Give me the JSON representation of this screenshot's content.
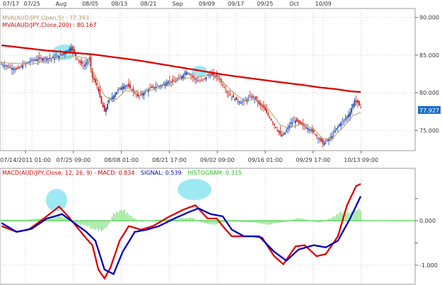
{
  "chart_data": {
    "type": "line",
    "price_panel": {
      "ylim": [
        72.5,
        91
      ],
      "y_ticks": [
        "90.000",
        "85.000",
        "80.000",
        "75.000"
      ],
      "y_tick_values": [
        90,
        85,
        80,
        75
      ],
      "top_dates": [
        "07/17",
        "07/25",
        "Aug",
        "08/05",
        "08/13",
        "08/21",
        "Sep",
        "09/09",
        "09/17",
        "09/25",
        "Oct",
        "10/09"
      ],
      "bottom_dates": [
        "07/14/2011 01:00",
        "07/25 09:00",
        "08/08 01:00",
        "08/21 17:00",
        "09/02 09:00",
        "09/16 01:00",
        "09/29 17:00",
        "10/13 09:00"
      ],
      "legend_mva5": "MVA(AUD/JPY,Open,5) : 77.393",
      "legend_mva200": "MVA(AUD/JPY,Close,200) : 80.167",
      "last_price": "77.927",
      "colors": {
        "up": "#1b3fa6",
        "down": "#c81e1e",
        "mva200": "#dd0000",
        "mva5": "#b5a16a",
        "highlight": "#7ee0f0",
        "price_box": "#1a6fc8"
      },
      "close_path": [
        [
          0,
          83.8
        ],
        [
          5,
          83.4
        ],
        [
          10,
          83.1
        ],
        [
          15,
          83.8
        ],
        [
          20,
          84.3
        ],
        [
          25,
          84.5
        ],
        [
          30,
          84.6
        ],
        [
          35,
          84.6
        ],
        [
          38,
          84.9
        ],
        [
          42,
          85.4
        ],
        [
          46,
          86.0
        ],
        [
          50,
          84.5
        ],
        [
          54,
          83.5
        ],
        [
          58,
          84.5
        ],
        [
          60,
          82.0
        ],
        [
          63,
          81.0
        ],
        [
          66,
          78.6
        ],
        [
          68,
          77.5
        ],
        [
          71,
          79.0
        ],
        [
          74,
          79.6
        ],
        [
          77,
          80.4
        ],
        [
          80,
          80.8
        ],
        [
          83,
          81.0
        ],
        [
          86,
          80.4
        ],
        [
          90,
          79.5
        ],
        [
          94,
          80.0
        ],
        [
          98,
          80.6
        ],
        [
          102,
          80.8
        ],
        [
          106,
          81.0
        ],
        [
          110,
          81.5
        ],
        [
          114,
          81.5
        ],
        [
          118,
          82.0
        ],
        [
          122,
          82.8
        ],
        [
          125,
          82.3
        ],
        [
          128,
          81.7
        ],
        [
          131,
          81.5
        ],
        [
          134,
          81.9
        ],
        [
          137,
          82.5
        ],
        [
          140,
          82.3
        ],
        [
          143,
          82.1
        ],
        [
          146,
          81.0
        ],
        [
          149,
          80.0
        ],
        [
          152,
          79.5
        ],
        [
          155,
          79.0
        ],
        [
          158,
          78.7
        ],
        [
          161,
          79.0
        ],
        [
          164,
          79.5
        ],
        [
          167,
          79.3
        ],
        [
          170,
          78.5
        ],
        [
          173,
          78.0
        ],
        [
          176,
          77.0
        ],
        [
          179,
          76.0
        ],
        [
          182,
          75.0
        ],
        [
          185,
          74.2
        ],
        [
          188,
          75.0
        ],
        [
          191,
          76.0
        ],
        [
          194,
          76.3
        ],
        [
          197,
          75.9
        ],
        [
          200,
          75.5
        ],
        [
          203,
          75.2
        ],
        [
          206,
          74.7
        ],
        [
          209,
          74.0
        ],
        [
          212,
          73.3
        ],
        [
          215,
          73.6
        ],
        [
          218,
          74.3
        ],
        [
          221,
          75.3
        ],
        [
          224,
          76.0
        ],
        [
          227,
          76.6
        ],
        [
          230,
          77.4
        ],
        [
          233,
          79.0
        ],
        [
          235,
          78.6
        ],
        [
          237,
          78.0
        ]
      ],
      "mva5_path": [
        [
          0,
          84.0
        ],
        [
          20,
          83.8
        ],
        [
          40,
          84.6
        ],
        [
          48,
          84.9
        ],
        [
          56,
          84.6
        ],
        [
          60,
          83.0
        ],
        [
          64,
          81.5
        ],
        [
          68,
          79.6
        ],
        [
          74,
          78.8
        ],
        [
          82,
          80.3
        ],
        [
          90,
          80.0
        ],
        [
          100,
          80.4
        ],
        [
          110,
          81.2
        ],
        [
          120,
          81.9
        ],
        [
          130,
          82.1
        ],
        [
          138,
          82.4
        ],
        [
          146,
          81.5
        ],
        [
          152,
          80.2
        ],
        [
          160,
          79.0
        ],
        [
          168,
          79.1
        ],
        [
          176,
          77.9
        ],
        [
          184,
          75.7
        ],
        [
          190,
          75.3
        ],
        [
          198,
          75.9
        ],
        [
          206,
          75.2
        ],
        [
          212,
          73.9
        ],
        [
          218,
          73.9
        ],
        [
          226,
          75.5
        ],
        [
          232,
          77.0
        ],
        [
          237,
          77.4
        ]
      ],
      "mva200_path": [
        [
          0,
          86.3
        ],
        [
          30,
          85.6
        ],
        [
          60,
          85.1
        ],
        [
          90,
          84.3
        ],
        [
          120,
          83.3
        ],
        [
          150,
          82.3
        ],
        [
          180,
          81.5
        ],
        [
          200,
          81.0
        ],
        [
          210,
          80.7
        ],
        [
          220,
          80.5
        ],
        [
          230,
          80.2
        ],
        [
          237,
          80.1
        ]
      ]
    },
    "macd_panel": {
      "ylim": [
        -1.4,
        1.15
      ],
      "y_ticks": [
        "0.000",
        "-1.000"
      ],
      "y_tick_values": [
        0,
        -1
      ],
      "legend_title": "MACD(AUD/JPY,Close, 12, 26, 9)",
      "legend_macd": "MACD: 0.834",
      "legend_signal": "SIGNAL: 0.539",
      "legend_histogram": "HISTOGRAM: 0.315",
      "colors": {
        "macd": "#dd0000",
        "signal": "#0000bb",
        "histogram": "#44d044",
        "zero": "#22cc22",
        "highlight": "#7ee0f0"
      },
      "macd_path": [
        [
          0,
          -0.12
        ],
        [
          10,
          -0.25
        ],
        [
          18,
          -0.2
        ],
        [
          28,
          0.05
        ],
        [
          38,
          0.32
        ],
        [
          44,
          0.1
        ],
        [
          50,
          -0.15
        ],
        [
          56,
          -0.4
        ],
        [
          60,
          -0.55
        ],
        [
          64,
          -1.1
        ],
        [
          68,
          -1.3
        ],
        [
          72,
          -1.05
        ],
        [
          78,
          -0.45
        ],
        [
          84,
          -0.12
        ],
        [
          92,
          -0.2
        ],
        [
          100,
          -0.12
        ],
        [
          110,
          0.08
        ],
        [
          120,
          0.25
        ],
        [
          128,
          0.35
        ],
        [
          136,
          0.05
        ],
        [
          142,
          0.05
        ],
        [
          148,
          -0.2
        ],
        [
          152,
          -0.35
        ],
        [
          158,
          -0.35
        ],
        [
          166,
          -0.35
        ],
        [
          172,
          -0.38
        ],
        [
          180,
          -0.8
        ],
        [
          186,
          -0.98
        ],
        [
          194,
          -0.58
        ],
        [
          200,
          -0.55
        ],
        [
          208,
          -0.8
        ],
        [
          214,
          -0.75
        ],
        [
          222,
          -0.35
        ],
        [
          228,
          0.35
        ],
        [
          234,
          0.78
        ],
        [
          237,
          0.83
        ]
      ],
      "signal_path": [
        [
          0,
          -0.05
        ],
        [
          10,
          -0.25
        ],
        [
          20,
          -0.18
        ],
        [
          30,
          0.05
        ],
        [
          40,
          0.15
        ],
        [
          48,
          -0.05
        ],
        [
          56,
          -0.25
        ],
        [
          62,
          -0.45
        ],
        [
          68,
          -1.1
        ],
        [
          74,
          -1.2
        ],
        [
          80,
          -0.7
        ],
        [
          88,
          -0.25
        ],
        [
          96,
          -0.2
        ],
        [
          104,
          -0.12
        ],
        [
          114,
          0.05
        ],
        [
          124,
          0.2
        ],
        [
          130,
          0.28
        ],
        [
          138,
          0.15
        ],
        [
          146,
          0.1
        ],
        [
          152,
          -0.2
        ],
        [
          160,
          -0.35
        ],
        [
          170,
          -0.35
        ],
        [
          180,
          -0.7
        ],
        [
          188,
          -0.9
        ],
        [
          196,
          -0.65
        ],
        [
          206,
          -0.55
        ],
        [
          214,
          -0.6
        ],
        [
          222,
          -0.45
        ],
        [
          230,
          0.05
        ],
        [
          237,
          0.55
        ]
      ],
      "histogram_path": [
        [
          0,
          0.03
        ],
        [
          15,
          0.02
        ],
        [
          30,
          0.08
        ],
        [
          38,
          0.12
        ],
        [
          44,
          0.06
        ],
        [
          50,
          -0.08
        ],
        [
          56,
          -0.12
        ],
        [
          60,
          -0.2
        ],
        [
          66,
          -0.25
        ],
        [
          70,
          -0.15
        ],
        [
          74,
          0.18
        ],
        [
          80,
          0.28
        ],
        [
          86,
          0.1
        ],
        [
          92,
          -0.03
        ],
        [
          100,
          0.02
        ],
        [
          110,
          0.04
        ],
        [
          118,
          0.06
        ],
        [
          126,
          0.08
        ],
        [
          132,
          -0.05
        ],
        [
          140,
          -0.1
        ],
        [
          146,
          -0.05
        ],
        [
          152,
          -0.02
        ],
        [
          160,
          -0.03
        ],
        [
          168,
          -0.05
        ],
        [
          176,
          -0.1
        ],
        [
          182,
          -0.06
        ],
        [
          188,
          -0.02
        ],
        [
          196,
          0.07
        ],
        [
          202,
          0.02
        ],
        [
          210,
          -0.05
        ],
        [
          218,
          0.08
        ],
        [
          224,
          0.22
        ],
        [
          230,
          0.2
        ],
        [
          237,
          0.3
        ]
      ]
    }
  }
}
